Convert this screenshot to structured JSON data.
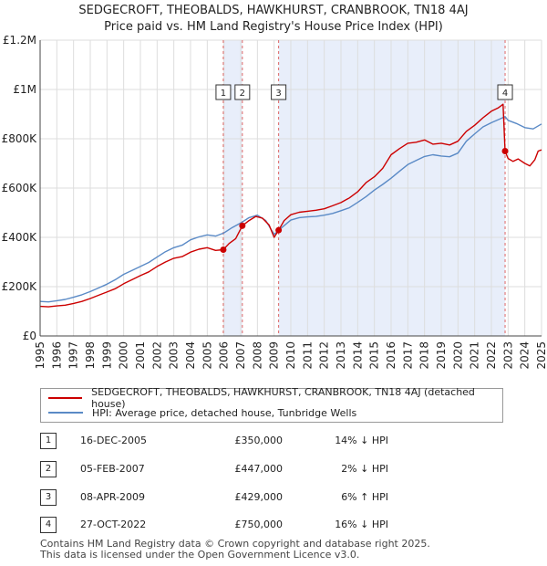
{
  "title_line1": "SEDGECROFT, THEOBALDS, HAWKHURST, CRANBROOK, TN18 4AJ",
  "title_line2": "Price paid vs. HM Land Registry's House Price Index (HPI)",
  "colors": {
    "property": "#cc0000",
    "hpi": "#5a8ac6",
    "shade": "#e8eefa",
    "vline": "#dd6666",
    "grid": "#dddddd"
  },
  "chart_data": {
    "type": "line",
    "ylim": [
      0,
      1200000
    ],
    "xlim": [
      1995,
      2025
    ],
    "y_ticks": [
      0,
      200000,
      400000,
      600000,
      800000,
      1000000,
      1200000
    ],
    "y_tick_labels": [
      "£0",
      "£200K",
      "£400K",
      "£600K",
      "£800K",
      "£1M",
      "£1.2M"
    ],
    "x_ticks": [
      1995,
      1996,
      1997,
      1998,
      1999,
      2000,
      2001,
      2002,
      2003,
      2004,
      2005,
      2006,
      2007,
      2008,
      2009,
      2010,
      2011,
      2012,
      2013,
      2014,
      2015,
      2016,
      2017,
      2018,
      2019,
      2020,
      2021,
      2022,
      2023,
      2024,
      2025
    ],
    "shaded_ranges": [
      [
        2005.96,
        2007.1
      ],
      [
        2009.27,
        2022.82
      ]
    ],
    "series": [
      {
        "name": "SEDGECROFT, THEOBALDS, HAWKHURST, CRANBROOK, TN18 4AJ (detached house)",
        "x": [
          1995,
          1995.5,
          1996,
          1996.5,
          1997,
          1997.5,
          1998,
          1998.5,
          1999,
          1999.5,
          2000,
          2000.5,
          2001,
          2001.5,
          2002,
          2002.5,
          2003,
          2003.5,
          2004,
          2004.5,
          2005,
          2005.5,
          2005.96,
          2006.3,
          2006.7,
          2007.1,
          2007.5,
          2007.9,
          2008.3,
          2008.7,
          2009.0,
          2009.27,
          2009.6,
          2010,
          2010.5,
          2011,
          2011.5,
          2012,
          2012.5,
          2013,
          2013.5,
          2014,
          2014.5,
          2015,
          2015.5,
          2016,
          2016.5,
          2017,
          2017.5,
          2018,
          2018.5,
          2019,
          2019.5,
          2020,
          2020.5,
          2021,
          2021.5,
          2022,
          2022.4,
          2022.6,
          2022.7,
          2022.82,
          2023,
          2023.3,
          2023.6,
          2024,
          2024.3,
          2024.6,
          2024.8,
          2025
        ],
        "y": [
          120000,
          118000,
          122000,
          125000,
          132000,
          140000,
          152000,
          165000,
          178000,
          192000,
          212000,
          228000,
          245000,
          260000,
          282000,
          300000,
          315000,
          322000,
          340000,
          352000,
          358000,
          347000,
          350000,
          375000,
          395000,
          447000,
          468000,
          485000,
          478000,
          450000,
          400000,
          429000,
          468000,
          492000,
          502000,
          506000,
          510000,
          516000,
          528000,
          541000,
          560000,
          585000,
          622000,
          646000,
          680000,
          735000,
          760000,
          782000,
          786000,
          795000,
          778000,
          782000,
          775000,
          790000,
          830000,
          855000,
          885000,
          912000,
          925000,
          935000,
          940000,
          750000,
          720000,
          708000,
          718000,
          700000,
          690000,
          715000,
          750000,
          755000
        ]
      },
      {
        "name": "HPI: Average price, detached house, Tunbridge Wells",
        "x": [
          1995,
          1995.5,
          1996,
          1996.5,
          1997,
          1997.5,
          1998,
          1998.5,
          1999,
          1999.5,
          2000,
          2000.5,
          2001,
          2001.5,
          2002,
          2002.5,
          2003,
          2003.5,
          2004,
          2004.5,
          2005,
          2005.5,
          2006,
          2006.5,
          2007,
          2007.5,
          2008,
          2008.5,
          2009,
          2009.5,
          2010,
          2010.5,
          2011,
          2011.5,
          2012,
          2012.5,
          2013,
          2013.5,
          2014,
          2014.5,
          2015,
          2015.5,
          2016,
          2016.5,
          2017,
          2017.5,
          2018,
          2018.5,
          2019,
          2019.5,
          2020,
          2020.5,
          2021,
          2021.5,
          2022,
          2022.5,
          2022.82,
          2023,
          2023.5,
          2024,
          2024.5,
          2025
        ],
        "y": [
          140000,
          138000,
          143000,
          148000,
          157000,
          167000,
          180000,
          195000,
          210000,
          228000,
          250000,
          266000,
          282000,
          298000,
          320000,
          342000,
          358000,
          368000,
          390000,
          402000,
          410000,
          405000,
          418000,
          440000,
          458000,
          480000,
          490000,
          468000,
          412000,
          442000,
          470000,
          480000,
          483000,
          485000,
          490000,
          497000,
          508000,
          520000,
          542000,
          565000,
          592000,
          615000,
          640000,
          668000,
          695000,
          712000,
          728000,
          735000,
          730000,
          727000,
          742000,
          790000,
          820000,
          848000,
          865000,
          880000,
          890000,
          875000,
          862000,
          845000,
          840000,
          860000
        ]
      }
    ]
  },
  "markers": [
    {
      "num": "1",
      "x": 2005.96,
      "y": 350000
    },
    {
      "num": "2",
      "x": 2007.1,
      "y": 447000
    },
    {
      "num": "3",
      "x": 2009.27,
      "y": 429000
    },
    {
      "num": "4",
      "x": 2022.82,
      "y": 750000
    }
  ],
  "legend": {
    "property": "SEDGECROFT, THEOBALDS, HAWKHURST, CRANBROOK, TN18 4AJ (detached house)",
    "hpi": "HPI: Average price, detached house, Tunbridge Wells"
  },
  "transactions": [
    {
      "num": "1",
      "date": "16-DEC-2005",
      "price": "£350,000",
      "hpi": "14% ↓ HPI"
    },
    {
      "num": "2",
      "date": "05-FEB-2007",
      "price": "£447,000",
      "hpi": "2% ↓ HPI"
    },
    {
      "num": "3",
      "date": "08-APR-2009",
      "price": "£429,000",
      "hpi": "6% ↑ HPI"
    },
    {
      "num": "4",
      "date": "27-OCT-2022",
      "price": "£750,000",
      "hpi": "16% ↓ HPI"
    }
  ],
  "footer_line1": "Contains HM Land Registry data © Crown copyright and database right 2025.",
  "footer_line2": "This data is licensed under the Open Government Licence v3.0."
}
